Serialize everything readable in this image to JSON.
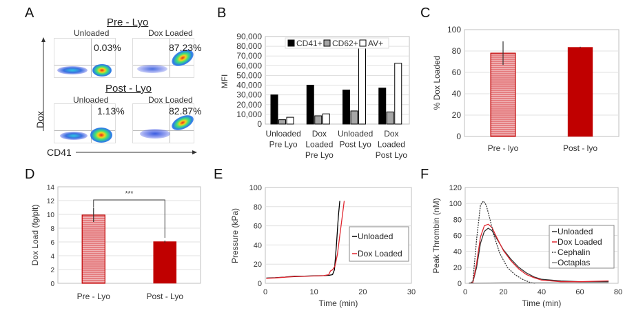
{
  "panels": {
    "A": {
      "letter": "A",
      "pre_title": "Pre - Lyo",
      "post_title": "Post - Lyo",
      "y_axis_label": "Dox",
      "x_axis_label": "CD41",
      "plots": [
        {
          "label": "Unloaded",
          "percent": "0.03%"
        },
        {
          "label": "Dox Loaded",
          "percent": "87.23%"
        },
        {
          "label": "Unloaded",
          "percent": "1.13%"
        },
        {
          "label": "Dox Loaded",
          "percent": "82.87%"
        }
      ]
    },
    "B": {
      "letter": "B"
    },
    "C": {
      "letter": "C"
    },
    "D": {
      "letter": "D"
    },
    "E": {
      "letter": "E"
    },
    "F": {
      "letter": "F"
    }
  },
  "colors": {
    "red_dark": "#c00000",
    "red_light": "#e57f82",
    "black": "#000000",
    "gray": "#a6a6a6",
    "grid": "#e0e0e0"
  },
  "chart_data": [
    {
      "panel": "A",
      "type": "scatter",
      "title": "Flow cytometry: Dox vs CD41",
      "xlabel": "CD41",
      "ylabel": "Dox",
      "groups": [
        "Pre - Lyo",
        "Post - Lyo"
      ],
      "series": [
        {
          "name": "Pre - Lyo Unloaded",
          "dox_positive_percent": 0.03
        },
        {
          "name": "Pre - Lyo Dox Loaded",
          "dox_positive_percent": 87.23
        },
        {
          "name": "Post - Lyo Unloaded",
          "dox_positive_percent": 1.13
        },
        {
          "name": "Post - Lyo Dox Loaded",
          "dox_positive_percent": 82.87
        }
      ]
    },
    {
      "panel": "B",
      "type": "bar",
      "title": "",
      "xlabel": "",
      "ylabel": "MFI",
      "ylim": [
        0,
        90000
      ],
      "yticks": [
        "0",
        "10,000",
        "20,000",
        "30,000",
        "40,000",
        "50,000",
        "60,000",
        "70,000",
        "80,000",
        "90,000"
      ],
      "categories": [
        [
          "Unloaded",
          "Pre Lyo"
        ],
        [
          "Dox",
          "Loaded",
          "Pre Lyo"
        ],
        [
          "Unloaded",
          "Post Lyo"
        ],
        [
          "Dox",
          "Loaded",
          "Post Lyo"
        ]
      ],
      "legend_position": "top",
      "series": [
        {
          "name": "CD41+",
          "color": "#000000",
          "values": [
            30000,
            40000,
            35000,
            37000
          ]
        },
        {
          "name": "CD62+",
          "color": "#a6a6a6",
          "values": [
            4500,
            8500,
            13500,
            12500
          ]
        },
        {
          "name": "AV+",
          "color": "#ffffff",
          "values": [
            7000,
            10500,
            79000,
            62500
          ]
        }
      ]
    },
    {
      "panel": "C",
      "type": "bar",
      "xlabel": "",
      "ylabel": "% Dox Loaded",
      "ylim": [
        0,
        100
      ],
      "yticks": [
        "0",
        "20",
        "40",
        "60",
        "80",
        "100"
      ],
      "categories": [
        "Pre - lyo",
        "Post - lyo"
      ],
      "values": [
        78,
        83.5
      ],
      "error": [
        [
          67,
          89
        ],
        [
          83,
          84
        ]
      ],
      "bar_styles": [
        "light-striped",
        "solid"
      ]
    },
    {
      "panel": "D",
      "type": "bar",
      "xlabel": "",
      "ylabel": "Dox Load (fg/plt)",
      "ylim": [
        0,
        14
      ],
      "yticks": [
        "0",
        "2",
        "4",
        "6",
        "8",
        "10",
        "12",
        "14"
      ],
      "categories": [
        "Pre - Lyo",
        "Post - Lyo"
      ],
      "values": [
        9.9,
        6.05
      ],
      "error": [
        [
          8.9,
          10.9
        ],
        [
          5.9,
          6.2
        ]
      ],
      "bar_styles": [
        "light-striped",
        "solid"
      ],
      "annotation": "***"
    },
    {
      "panel": "E",
      "type": "line",
      "xlabel": "Time (min)",
      "ylabel": "Pressure (kPa)",
      "xlim": [
        0,
        30
      ],
      "ylim": [
        0,
        100
      ],
      "xticks": [
        "0",
        "10",
        "20",
        "30"
      ],
      "yticks": [
        "0",
        "20",
        "40",
        "60",
        "80",
        "100"
      ],
      "legend_position": "right",
      "series": [
        {
          "name": "Unloaded",
          "color": "#000000",
          "x": [
            0.2,
            2,
            4,
            6,
            8,
            10,
            12,
            13,
            13.8,
            14.2,
            14.6,
            15.0,
            15.3
          ],
          "y": [
            5.5,
            5.8,
            6.5,
            7.5,
            7.5,
            7.8,
            8,
            8.3,
            9,
            14,
            40,
            70,
            86
          ]
        },
        {
          "name": "Dox Loaded",
          "color": "#e0262f",
          "x": [
            0.2,
            2,
            4,
            6,
            8,
            10,
            12,
            13,
            13.4,
            13.8,
            14.3,
            14.8,
            15.3,
            15.8,
            16.2
          ],
          "y": [
            5.2,
            5.6,
            6.3,
            7,
            7.3,
            7.6,
            8,
            9,
            13,
            14,
            18,
            30,
            50,
            70,
            86
          ]
        }
      ]
    },
    {
      "panel": "F",
      "type": "line",
      "xlabel": "Time (min)",
      "ylabel": "Peak Thrombin (nM)",
      "xlim": [
        0,
        80
      ],
      "ylim": [
        0,
        120
      ],
      "xticks": [
        "0",
        "20",
        "40",
        "60",
        "80"
      ],
      "yticks": [
        "0",
        "20",
        "40",
        "60",
        "80",
        "100",
        "120"
      ],
      "legend_position": "right",
      "series": [
        {
          "name": "Unloaded",
          "color": "#333333",
          "dash": "solid",
          "x": [
            2,
            4,
            6,
            8,
            10,
            12,
            14,
            16,
            20,
            24,
            28,
            32,
            36,
            40,
            50,
            60,
            75
          ],
          "y": [
            0,
            1,
            20,
            50,
            65,
            69,
            66,
            58,
            42,
            30,
            20,
            13,
            8,
            5,
            3,
            2,
            2
          ]
        },
        {
          "name": "Dox Loaded",
          "color": "#e0262f",
          "dash": "solid",
          "x": [
            2,
            4,
            6,
            8,
            10,
            12,
            14,
            16,
            20,
            24,
            28,
            32,
            36,
            40,
            50,
            60,
            75
          ],
          "y": [
            0,
            1,
            25,
            58,
            72,
            74,
            70,
            60,
            41,
            28,
            18,
            11,
            7,
            4,
            2,
            2,
            3
          ]
        },
        {
          "name": "Cephalin",
          "color": "#333333",
          "dash": "dashed",
          "x": [
            2,
            4,
            6,
            8,
            9.5,
            11,
            13,
            15,
            18,
            22,
            26,
            30,
            34,
            37
          ],
          "y": [
            0,
            2,
            55,
            98,
            103,
            98,
            80,
            60,
            38,
            20,
            11,
            5,
            1,
            0
          ]
        },
        {
          "name": "Octaplas",
          "color": "#888888",
          "dash": "solid",
          "x": [
            2,
            20,
            40,
            60,
            75
          ],
          "y": [
            0,
            0.5,
            0.5,
            0.5,
            0.5
          ]
        }
      ]
    }
  ]
}
